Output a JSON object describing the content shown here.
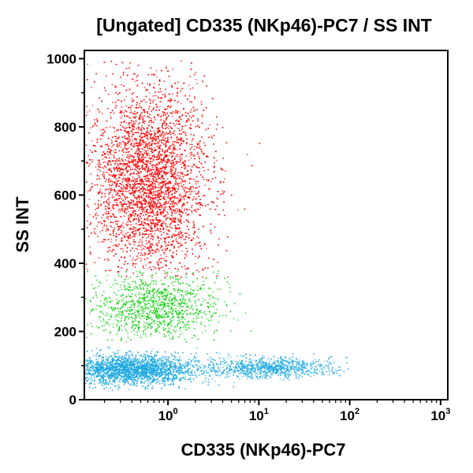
{
  "chart_data": {
    "type": "scatter",
    "title": "[Ungated] CD335 (NKp46)-PC7 / SS INT",
    "xlabel": "CD335 (NKp46)-PC7",
    "ylabel": "SS INT",
    "x_scale": "log",
    "xlim": [
      0.12,
      1200
    ],
    "ylim": [
      0,
      1024
    ],
    "x_ticks": [
      {
        "base": "10",
        "exp": "0",
        "value": 1
      },
      {
        "base": "10",
        "exp": "1",
        "value": 10
      },
      {
        "base": "10",
        "exp": "2",
        "value": 100
      },
      {
        "base": "10",
        "exp": "3",
        "value": 1000
      }
    ],
    "y_ticks": [
      {
        "label": "0",
        "value": 0
      },
      {
        "label": "200",
        "value": 200
      },
      {
        "label": "400",
        "value": 400
      },
      {
        "label": "600",
        "value": 600
      },
      {
        "label": "800",
        "value": 800
      },
      {
        "label": "1000",
        "value": 1000
      }
    ],
    "grid": false,
    "series": [
      {
        "color": "#ff0000",
        "x_center": 0.6,
        "x_log_spread": 0.32,
        "y_center": 640,
        "y_spread": 140,
        "y_range": [
          360,
          1000
        ],
        "count": 5000
      },
      {
        "color": "#00cc00",
        "x_center": 0.7,
        "x_log_spread": 0.35,
        "y_center": 270,
        "y_spread": 50,
        "y_range": [
          170,
          380
        ],
        "count": 1100
      },
      {
        "color": "#1aa7e0",
        "x_center": 0.4,
        "x_log_spread": 0.35,
        "y_center": 90,
        "y_spread": 22,
        "y_range": [
          30,
          160
        ],
        "count": 2600
      },
      {
        "color": "#1aa7e0",
        "x_center": 12,
        "x_log_spread": 0.35,
        "y_center": 95,
        "y_spread": 15,
        "y_range": [
          60,
          140
        ],
        "count": 900
      }
    ]
  }
}
